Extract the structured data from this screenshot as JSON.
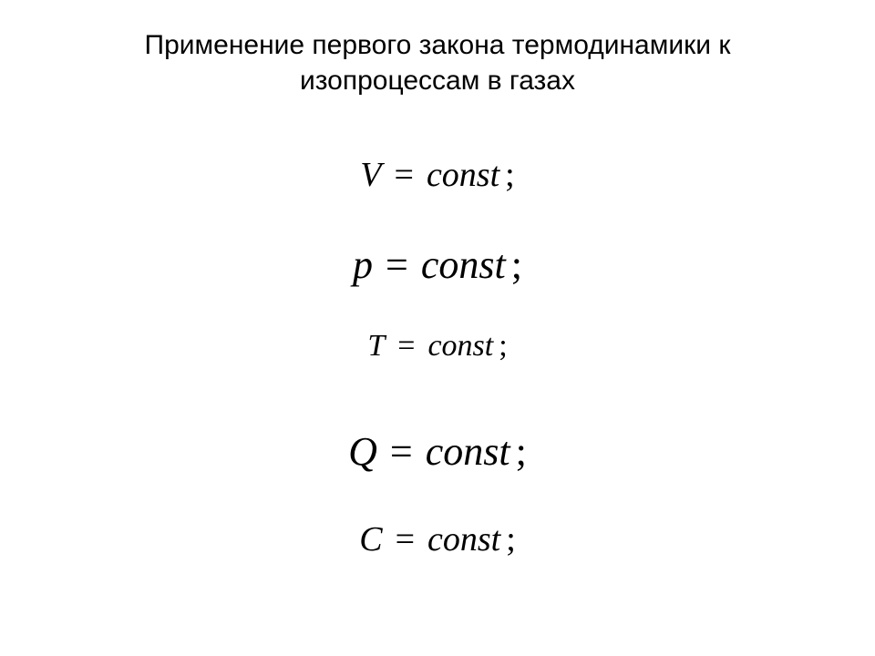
{
  "title_line1": "Применение первого закона термодинамики к",
  "title_line2": "изопроцессам в газах",
  "equations": [
    {
      "var": "V",
      "eq": "=",
      "rhs": "const",
      "semi": ";",
      "size": "large"
    },
    {
      "var": "p",
      "eq": "=",
      "rhs": "const",
      "semi": ";",
      "size": "xlarge"
    },
    {
      "var": "T",
      "eq": "=",
      "rhs": "const",
      "semi": ";",
      "size": "medium"
    },
    {
      "var": "Q",
      "eq": "=",
      "rhs": "const",
      "semi": ";",
      "size": "xlarge"
    },
    {
      "var": "C",
      "eq": "=",
      "rhs": "const",
      "semi": ";",
      "size": "large"
    }
  ],
  "colors": {
    "background": "#ffffff",
    "text": "#000000"
  },
  "typography": {
    "title_font": "Arial",
    "title_size_pt": 30,
    "equation_font": "Times New Roman",
    "equation_style": "italic"
  }
}
